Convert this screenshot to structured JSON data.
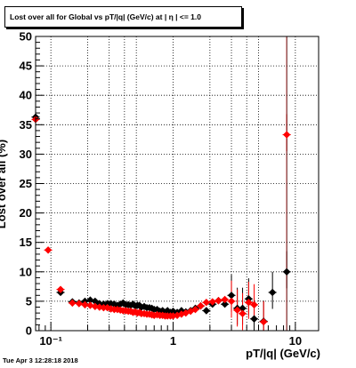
{
  "title": "Lost over all for Global vs pT/|q| (GeV/c) at |  η | <= 1.0",
  "timestamp": "Tue Apr  3 12:28:18 2018",
  "chart_data": {
    "type": "scatter",
    "title": "Lost over all for Global vs pT/|q| (GeV/c) at |  η | <= 1.0",
    "xlabel": "pT/|q| (GeV/c)",
    "ylabel": "Lost over all (%)",
    "xscale": "log",
    "xlim": [
      0.075,
      15.5
    ],
    "ylim": [
      0,
      50
    ],
    "grid": true,
    "x_tick_labels": [
      "10⁻¹",
      "1",
      "10"
    ],
    "x_ticks": [
      0.1,
      1,
      10
    ],
    "y_ticks": [
      0,
      5,
      10,
      15,
      20,
      25,
      30,
      35,
      40,
      45,
      50
    ],
    "y_tick_labels": [
      "0",
      "5",
      "10",
      "15",
      "20",
      "25",
      "30",
      "35",
      "40",
      "45",
      "50"
    ],
    "series": [
      {
        "color": "#000000",
        "marker": "diamond",
        "points": [
          [
            0.075,
            36.3
          ],
          [
            0.12,
            6.5
          ],
          [
            0.15,
            4.9
          ],
          [
            0.17,
            4.7
          ],
          [
            0.19,
            5.0
          ],
          [
            0.21,
            5.2
          ],
          [
            0.23,
            5.0
          ],
          [
            0.25,
            4.6
          ],
          [
            0.27,
            4.5
          ],
          [
            0.29,
            4.6
          ],
          [
            0.31,
            4.6
          ],
          [
            0.33,
            4.5
          ],
          [
            0.35,
            4.3
          ],
          [
            0.37,
            4.5
          ],
          [
            0.39,
            4.7
          ],
          [
            0.41,
            4.4
          ],
          [
            0.43,
            4.4
          ],
          [
            0.45,
            4.3
          ],
          [
            0.47,
            4.5
          ],
          [
            0.49,
            4.2
          ],
          [
            0.51,
            4.3
          ],
          [
            0.53,
            4.3
          ],
          [
            0.55,
            4.0
          ],
          [
            0.58,
            4.1
          ],
          [
            0.61,
            3.9
          ],
          [
            0.64,
            3.9
          ],
          [
            0.67,
            3.8
          ],
          [
            0.7,
            3.6
          ],
          [
            0.74,
            3.6
          ],
          [
            0.78,
            3.3
          ],
          [
            0.82,
            3.4
          ],
          [
            0.86,
            3.1
          ],
          [
            0.9,
            3.4
          ],
          [
            0.95,
            3.1
          ],
          [
            1.0,
            3.3
          ],
          [
            1.08,
            3.1
          ],
          [
            1.17,
            3.4
          ],
          [
            1.27,
            3.2
          ],
          [
            1.39,
            3.4
          ],
          [
            1.52,
            3.8
          ],
          [
            1.68,
            4.2
          ],
          [
            1.87,
            3.4
          ],
          [
            2.1,
            4.5
          ],
          [
            2.35,
            5.1
          ],
          [
            2.65,
            4.5
          ],
          [
            3.0,
            6.0
          ],
          [
            3.35,
            3.8
          ],
          [
            3.7,
            3.8
          ],
          [
            4.15,
            5.4
          ],
          [
            4.6,
            2.0
          ],
          [
            5.5,
            1.6
          ],
          [
            6.5,
            6.5
          ],
          [
            8.5,
            10.0
          ]
        ]
      },
      {
        "color": "#ff0000",
        "marker": "diamond",
        "points": [
          [
            0.075,
            35.9
          ],
          [
            0.095,
            13.7
          ],
          [
            0.12,
            7.0
          ],
          [
            0.15,
            4.7
          ],
          [
            0.17,
            4.6
          ],
          [
            0.19,
            4.4
          ],
          [
            0.21,
            4.3
          ],
          [
            0.23,
            4.1
          ],
          [
            0.25,
            4.0
          ],
          [
            0.27,
            3.9
          ],
          [
            0.29,
            3.9
          ],
          [
            0.31,
            3.7
          ],
          [
            0.33,
            3.6
          ],
          [
            0.35,
            3.6
          ],
          [
            0.37,
            3.5
          ],
          [
            0.39,
            3.4
          ],
          [
            0.41,
            3.4
          ],
          [
            0.43,
            3.3
          ],
          [
            0.45,
            3.3
          ],
          [
            0.47,
            3.1
          ],
          [
            0.49,
            3.2
          ],
          [
            0.51,
            3.0
          ],
          [
            0.53,
            3.1
          ],
          [
            0.55,
            2.9
          ],
          [
            0.58,
            2.9
          ],
          [
            0.61,
            2.8
          ],
          [
            0.64,
            2.8
          ],
          [
            0.67,
            2.7
          ],
          [
            0.7,
            2.6
          ],
          [
            0.74,
            2.7
          ],
          [
            0.78,
            2.6
          ],
          [
            0.82,
            2.6
          ],
          [
            0.86,
            2.5
          ],
          [
            0.9,
            2.5
          ],
          [
            0.95,
            2.5
          ],
          [
            1.0,
            2.5
          ],
          [
            1.08,
            2.6
          ],
          [
            1.17,
            2.8
          ],
          [
            1.27,
            3.0
          ],
          [
            1.39,
            3.3
          ],
          [
            1.52,
            3.6
          ],
          [
            1.68,
            4.2
          ],
          [
            1.87,
            4.8
          ],
          [
            2.1,
            4.9
          ],
          [
            2.35,
            5.1
          ],
          [
            2.65,
            5.3
          ],
          [
            3.0,
            5.0
          ],
          [
            3.35,
            3.5
          ],
          [
            3.7,
            2.9
          ],
          [
            4.15,
            4.8
          ],
          [
            4.6,
            4.4
          ],
          [
            5.5,
            1.5
          ],
          [
            8.5,
            33.3
          ]
        ]
      }
    ]
  }
}
